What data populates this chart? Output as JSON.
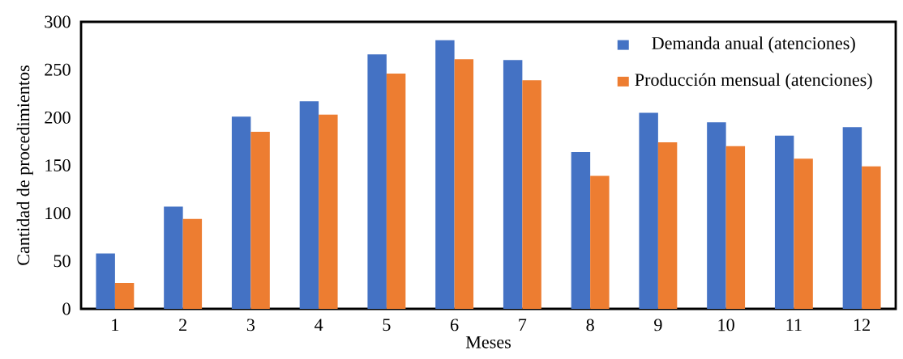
{
  "chart_data": {
    "type": "bar",
    "xlabel": "Meses",
    "ylabel": "Cantidad de procedimientos",
    "categories": [
      "1",
      "2",
      "3",
      "4",
      "5",
      "6",
      "7",
      "8",
      "9",
      "10",
      "11",
      "12"
    ],
    "series": [
      {
        "name": "Demanda anual (atenciones)",
        "color": "#4472c4",
        "values": [
          58,
          107,
          201,
          217,
          266,
          281,
          260,
          164,
          205,
          195,
          181,
          190
        ]
      },
      {
        "name": "Producción mensual (atenciones)",
        "color": "#ed7d31",
        "values": [
          27,
          94,
          185,
          203,
          246,
          261,
          239,
          139,
          174,
          170,
          157,
          149
        ]
      }
    ],
    "ylim": [
      0,
      300
    ],
    "yticks": [
      0,
      50,
      100,
      150,
      200,
      250,
      300
    ],
    "grid": false,
    "legend": "top right"
  }
}
